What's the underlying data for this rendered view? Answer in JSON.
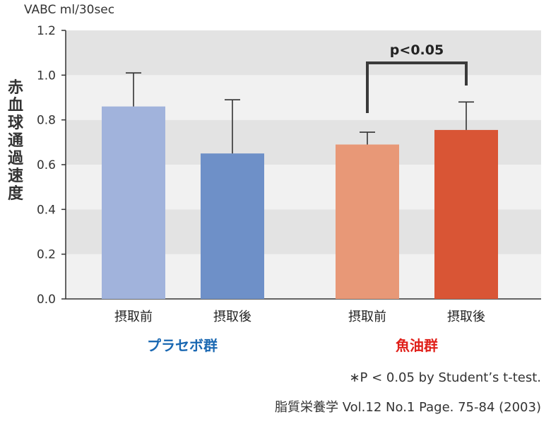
{
  "chart_data": {
    "type": "bar",
    "unit_label": "VABC ml/30sec",
    "ylabel_chars": [
      "赤",
      "血",
      "球",
      "通",
      "過",
      "速",
      "度"
    ],
    "ylim": [
      0,
      1.2
    ],
    "yticks": [
      "0.0",
      "0.2",
      "0.4",
      "0.6",
      "0.8",
      "1.0",
      "1.2"
    ],
    "grid": "alternating horizontal bands",
    "groups": [
      {
        "name": "プラセボ群",
        "color": "#1a68b2",
        "bars": [
          {
            "label": "摂取前",
            "value": 0.86,
            "error": 0.15,
            "color": "#a1b3dc"
          },
          {
            "label": "摂取後",
            "value": 0.65,
            "error": 0.24,
            "color": "#6e90c8"
          }
        ]
      },
      {
        "name": "魚油群",
        "color": "#e0201a",
        "bars": [
          {
            "label": "摂取前",
            "value": 0.69,
            "error": 0.055,
            "color": "#e89877"
          },
          {
            "label": "摂取後",
            "value": 0.755,
            "error": 0.125,
            "color": "#d95535"
          }
        ]
      }
    ],
    "annotations": [
      {
        "text": "p<0.05",
        "between": [
          2,
          3
        ]
      }
    ],
    "footnotes": [
      "∗P < 0.05 by Student’s t-test.",
      "脂質栄養学 Vol.12 No.1 Page. 75-84 (2003)"
    ]
  }
}
